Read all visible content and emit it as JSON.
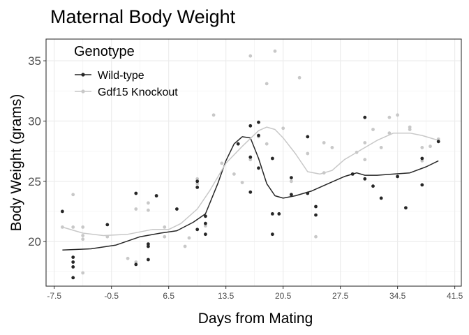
{
  "chart_data": {
    "type": "scatter",
    "title": "Maternal Body Weight",
    "xlabel": "Days from Mating",
    "ylabel": "Body Weight (grams)",
    "xlim": [
      -8.5,
      42.3
    ],
    "ylim": [
      16.3,
      36.8
    ],
    "x_ticks": [
      -7.5,
      -0.5,
      6.5,
      13.5,
      20.5,
      27.5,
      34.5,
      41.5
    ],
    "x_tick_labels": [
      "-7.5",
      "-0.5",
      "6.5",
      "13.5",
      "20.5",
      "27.5",
      "34.5",
      "41.5"
    ],
    "y_ticks": [
      20,
      25,
      30,
      35
    ],
    "y_tick_labels": [
      "20",
      "25",
      "30",
      "35"
    ],
    "grid": true,
    "legend": {
      "title": "Genotype",
      "position": "top-left",
      "entries": [
        "Wild-type",
        "Gdf15 Knockout"
      ]
    },
    "series": [
      {
        "name": "Wild-type",
        "color": "#262626",
        "points": [
          [
            -6.5,
            22.5
          ],
          [
            -5.2,
            18.7
          ],
          [
            -5.2,
            18.3
          ],
          [
            -5.2,
            17.9
          ],
          [
            -5.2,
            17.0
          ],
          [
            -1.0,
            21.4
          ],
          [
            2.5,
            18.1
          ],
          [
            2.5,
            24.0
          ],
          [
            4.0,
            19.8
          ],
          [
            4.0,
            19.6
          ],
          [
            4.0,
            18.5
          ],
          [
            5.0,
            23.8
          ],
          [
            7.5,
            22.7
          ],
          [
            10.0,
            25.0
          ],
          [
            10.0,
            24.5
          ],
          [
            10.0,
            21.0
          ],
          [
            11.0,
            22.1
          ],
          [
            11.0,
            21.5
          ],
          [
            11.0,
            20.6
          ],
          [
            15.0,
            28.1
          ],
          [
            16.5,
            27.0
          ],
          [
            16.5,
            24.1
          ],
          [
            17.5,
            26.1
          ],
          [
            17.5,
            28.8
          ],
          [
            17.5,
            29.9
          ],
          [
            16.5,
            29.6
          ],
          [
            19.2,
            26.9
          ],
          [
            19.2,
            22.3
          ],
          [
            19.2,
            20.6
          ],
          [
            20.0,
            22.3
          ],
          [
            21.5,
            25.3
          ],
          [
            21.5,
            23.9
          ],
          [
            23.5,
            24.0
          ],
          [
            23.5,
            28.7
          ],
          [
            24.5,
            22.9
          ],
          [
            24.5,
            22.2
          ],
          [
            29.0,
            25.6
          ],
          [
            30.5,
            25.2
          ],
          [
            30.5,
            30.3
          ],
          [
            31.5,
            24.6
          ],
          [
            32.5,
            23.6
          ],
          [
            34.5,
            25.4
          ],
          [
            35.5,
            22.8
          ],
          [
            37.5,
            26.9
          ],
          [
            37.5,
            24.7
          ],
          [
            39.5,
            28.3
          ]
        ],
        "trend": [
          [
            -6.5,
            19.3
          ],
          [
            -3.0,
            19.4
          ],
          [
            0.0,
            19.7
          ],
          [
            3.0,
            20.4
          ],
          [
            5.5,
            20.7
          ],
          [
            7.5,
            20.9
          ],
          [
            9.5,
            21.6
          ],
          [
            11.0,
            22.3
          ],
          [
            12.5,
            24.8
          ],
          [
            13.5,
            26.7
          ],
          [
            14.5,
            28.1
          ],
          [
            15.5,
            28.7
          ],
          [
            16.5,
            28.6
          ],
          [
            17.5,
            26.9
          ],
          [
            18.5,
            24.8
          ],
          [
            19.5,
            23.8
          ],
          [
            20.5,
            23.6
          ],
          [
            22.0,
            23.8
          ],
          [
            24.0,
            24.2
          ],
          [
            26.0,
            24.8
          ],
          [
            28.0,
            25.4
          ],
          [
            29.5,
            25.7
          ],
          [
            30.5,
            25.5
          ],
          [
            32.0,
            25.5
          ],
          [
            34.0,
            25.6
          ],
          [
            36.0,
            25.7
          ],
          [
            38.0,
            26.2
          ],
          [
            39.5,
            26.7
          ]
        ]
      },
      {
        "name": "Gdf15 Knockout",
        "color": "#c8c8c8",
        "points": [
          [
            -6.5,
            21.2
          ],
          [
            -5.2,
            23.9
          ],
          [
            -5.2,
            21.2
          ],
          [
            -4.0,
            21.2
          ],
          [
            -4.0,
            20.5
          ],
          [
            -4.0,
            20.2
          ],
          [
            -4.0,
            17.4
          ],
          [
            -1.0,
            20.4
          ],
          [
            1.5,
            18.6
          ],
          [
            2.5,
            22.7
          ],
          [
            2.5,
            18.3
          ],
          [
            4.0,
            22.6
          ],
          [
            4.0,
            23.2
          ],
          [
            6.0,
            20.4
          ],
          [
            6.0,
            21.2
          ],
          [
            8.5,
            19.6
          ],
          [
            9.0,
            20.3
          ],
          [
            10.0,
            25.2
          ],
          [
            10.0,
            24.8
          ],
          [
            11.0,
            21.3
          ],
          [
            12.0,
            30.5
          ],
          [
            13.0,
            26.5
          ],
          [
            14.5,
            25.6
          ],
          [
            15.5,
            24.9
          ],
          [
            16.5,
            35.4
          ],
          [
            16.5,
            26.8
          ],
          [
            17.5,
            28.7
          ],
          [
            18.5,
            28.1
          ],
          [
            18.5,
            33.1
          ],
          [
            19.5,
            35.8
          ],
          [
            20.5,
            29.4
          ],
          [
            21.5,
            25.0
          ],
          [
            22.5,
            33.6
          ],
          [
            23.5,
            27.3
          ],
          [
            24.5,
            20.4
          ],
          [
            25.5,
            25.7
          ],
          [
            25.5,
            28.2
          ],
          [
            26.5,
            27.8
          ],
          [
            29.5,
            27.4
          ],
          [
            30.5,
            26.8
          ],
          [
            30.5,
            28.2
          ],
          [
            31.5,
            29.3
          ],
          [
            32.5,
            27.8
          ],
          [
            33.5,
            29.0
          ],
          [
            33.5,
            30.3
          ],
          [
            34.5,
            30.5
          ],
          [
            36.0,
            29.3
          ],
          [
            36.0,
            29.5
          ],
          [
            37.5,
            27.8
          ],
          [
            37.5,
            26.7
          ],
          [
            38.5,
            27.9
          ],
          [
            39.5,
            28.5
          ]
        ],
        "trend": [
          [
            -6.5,
            21.2
          ],
          [
            -4.0,
            20.7
          ],
          [
            -1.5,
            20.5
          ],
          [
            1.5,
            20.6
          ],
          [
            4.5,
            21.0
          ],
          [
            6.5,
            21.0
          ],
          [
            8.0,
            21.5
          ],
          [
            10.0,
            22.7
          ],
          [
            11.5,
            24.2
          ],
          [
            13.5,
            26.5
          ],
          [
            15.5,
            27.9
          ],
          [
            17.5,
            29.2
          ],
          [
            18.5,
            29.5
          ],
          [
            19.5,
            29.3
          ],
          [
            20.5,
            28.6
          ],
          [
            22.0,
            27.3
          ],
          [
            23.5,
            25.8
          ],
          [
            25.0,
            25.6
          ],
          [
            26.5,
            25.9
          ],
          [
            28.0,
            26.8
          ],
          [
            30.0,
            27.6
          ],
          [
            32.0,
            28.4
          ],
          [
            34.0,
            29.0
          ],
          [
            36.0,
            29.0
          ],
          [
            37.5,
            28.8
          ],
          [
            39.5,
            28.4
          ]
        ]
      }
    ]
  }
}
